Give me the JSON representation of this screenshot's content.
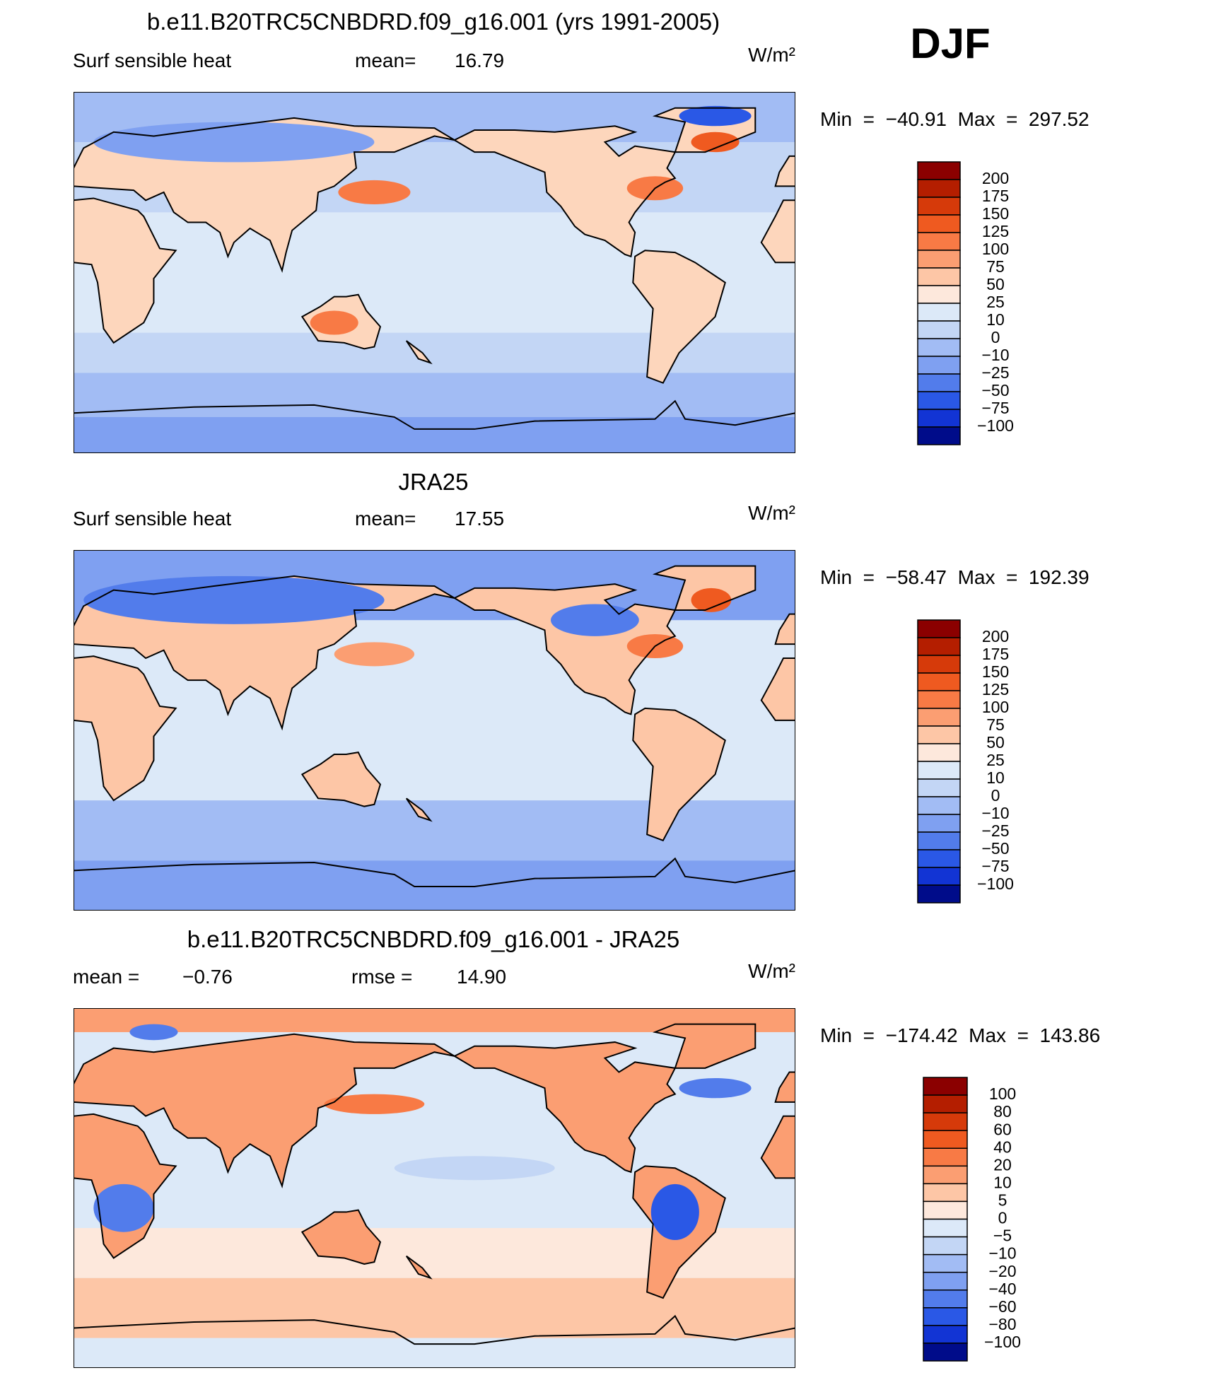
{
  "season": "DJF",
  "panels": [
    {
      "title": "b.e11.B20TRC5CNBDRD.f09_g16.001 (yrs 1991-2005)",
      "field": "Surf sensible heat",
      "stats": [
        {
          "label": "mean=",
          "value": "16.79"
        }
      ],
      "units": "W/m²",
      "min_max": "Min  =  −40.91  Max  =  297.52",
      "colorbar": {
        "levels": [
          "200",
          "175",
          "150",
          "125",
          "100",
          "75",
          "50",
          "25",
          "10",
          "0",
          "−10",
          "−25",
          "−50",
          "−75",
          "−100"
        ],
        "colors": [
          "#8b0000",
          "#b41e00",
          "#d63a0a",
          "#ef5a20",
          "#f87a45",
          "#fb9e72",
          "#fdc6a6",
          "#fde8dc",
          "#dce9f8",
          "#c3d6f5",
          "#a2bcf4",
          "#7fa0f1",
          "#527ceb",
          "#2a58e6",
          "#1234d4",
          "#000c8a"
        ]
      }
    },
    {
      "title": "JRA25",
      "field": "Surf sensible heat",
      "stats": [
        {
          "label": "mean=",
          "value": "17.55"
        }
      ],
      "units": "W/m²",
      "min_max": "Min  =  −58.47  Max  =  192.39",
      "colorbar": {
        "levels": [
          "200",
          "175",
          "150",
          "125",
          "100",
          "75",
          "50",
          "25",
          "10",
          "0",
          "−10",
          "−25",
          "−50",
          "−75",
          "−100"
        ],
        "colors": [
          "#8b0000",
          "#b41e00",
          "#d63a0a",
          "#ef5a20",
          "#f87a45",
          "#fb9e72",
          "#fdc6a6",
          "#fde8dc",
          "#dce9f8",
          "#c3d6f5",
          "#a2bcf4",
          "#7fa0f1",
          "#527ceb",
          "#2a58e6",
          "#1234d4",
          "#000c8a"
        ]
      }
    },
    {
      "title": "b.e11.B20TRC5CNBDRD.f09_g16.001 - JRA25",
      "stats": [
        {
          "label": "mean =",
          "value": "−0.76"
        },
        {
          "label": "rmse =",
          "value": "14.90"
        }
      ],
      "units": "W/m²",
      "min_max": "Min  =  −174.42  Max  =  143.86",
      "colorbar": {
        "levels": [
          "100",
          "80",
          "60",
          "40",
          "20",
          "10",
          "5",
          "0",
          "−5",
          "−10",
          "−20",
          "−40",
          "−60",
          "−80",
          "−100"
        ],
        "colors": [
          "#8b0000",
          "#b41e00",
          "#d63a0a",
          "#ef5a20",
          "#f87a45",
          "#fb9e72",
          "#fdc6a6",
          "#fde8dc",
          "#dce9f8",
          "#c3d6f5",
          "#a2bcf4",
          "#7fa0f1",
          "#527ceb",
          "#2a58e6",
          "#1234d4",
          "#000c8a"
        ]
      }
    }
  ]
}
